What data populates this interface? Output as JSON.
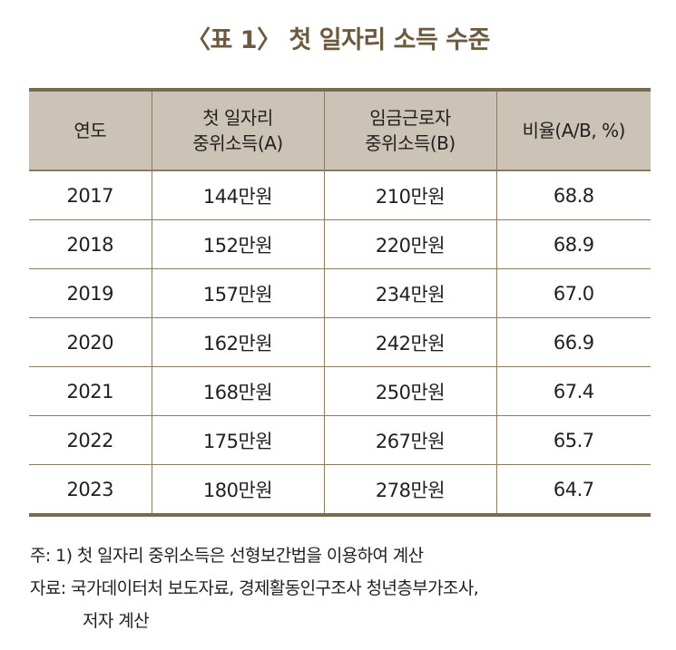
{
  "title": "〈표 1〉 첫 일자리 소득 수준",
  "table": {
    "headers": [
      {
        "line1": "연도",
        "line2": ""
      },
      {
        "line1": "첫 일자리",
        "line2": "중위소득(A)"
      },
      {
        "line1": "임금근로자",
        "line2": "중위소득(B)"
      },
      {
        "line1": "비율(A/B, %)",
        "line2": ""
      }
    ],
    "rows": [
      {
        "year": "2017",
        "a": "144만원",
        "b": "210만원",
        "ratio": "68.8"
      },
      {
        "year": "2018",
        "a": "152만원",
        "b": "220만원",
        "ratio": "68.9"
      },
      {
        "year": "2019",
        "a": "157만원",
        "b": "234만원",
        "ratio": "67.0"
      },
      {
        "year": "2020",
        "a": "162만원",
        "b": "242만원",
        "ratio": "66.9"
      },
      {
        "year": "2021",
        "a": "168만원",
        "b": "250만원",
        "ratio": "67.4"
      },
      {
        "year": "2022",
        "a": "175만원",
        "b": "267만원",
        "ratio": "65.7"
      },
      {
        "year": "2023",
        "a": "180만원",
        "b": "278만원",
        "ratio": "64.7"
      }
    ]
  },
  "notes": {
    "note": "주: 1) 첫 일자리 중위소득은 선형보간법을 이용하여 계산",
    "source_line1": "자료: 국가데이터처 보도자료, 경제활동인구조사 청년층부가조사,",
    "source_line2": "저자 계산"
  },
  "colors": {
    "title": "#6b5a3e",
    "header_bg": "#cbc3b5",
    "rule": "#7a6a4f"
  }
}
